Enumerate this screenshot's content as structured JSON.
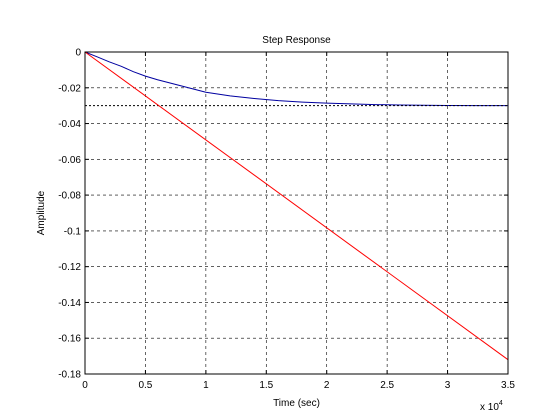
{
  "chart_data": {
    "type": "line",
    "title": "Step Response",
    "xlabel": "Time (sec)",
    "ylabel": "Amplitude",
    "x_multiplier_label": "x 10",
    "x_multiplier_exponent": "4",
    "xlim": [
      0,
      35000
    ],
    "ylim": [
      -0.18,
      0
    ],
    "x_ticks": [
      0,
      5000,
      10000,
      15000,
      20000,
      25000,
      30000,
      35000
    ],
    "x_tick_labels": [
      "0",
      "0.5",
      "1",
      "1.5",
      "2",
      "2.5",
      "3",
      "3.5"
    ],
    "y_ticks": [
      0,
      -0.02,
      -0.04,
      -0.06,
      -0.08,
      -0.1,
      -0.12,
      -0.14,
      -0.16,
      -0.18
    ],
    "y_tick_labels": [
      "0",
      "-0.02",
      "-0.04",
      "-0.06",
      "-0.08",
      "-0.1",
      "-0.12",
      "-0.14",
      "-0.16",
      "-0.18"
    ],
    "grid": true,
    "series": [
      {
        "color": "#0000a0",
        "style": "solid",
        "x": [
          0,
          1000,
          2000,
          3000,
          4000,
          5000,
          6000,
          8000,
          10000,
          12000,
          14000,
          16000,
          18000,
          20000,
          22000,
          24000,
          26000,
          28000,
          30000,
          32500,
          35000
        ],
        "y": [
          0,
          -0.0027,
          -0.0055,
          -0.008,
          -0.011,
          -0.0135,
          -0.0155,
          -0.019,
          -0.0225,
          -0.0245,
          -0.026,
          -0.0272,
          -0.028,
          -0.0286,
          -0.029,
          -0.0294,
          -0.0296,
          -0.0298,
          -0.0299,
          -0.03,
          -0.03
        ]
      },
      {
        "color": "#000000",
        "style": "dotted",
        "x": [
          0,
          35000
        ],
        "y": [
          -0.03,
          -0.03
        ]
      },
      {
        "color": "#ff0000",
        "style": "solid",
        "x": [
          0,
          35000
        ],
        "y": [
          0,
          -0.172
        ]
      }
    ]
  }
}
